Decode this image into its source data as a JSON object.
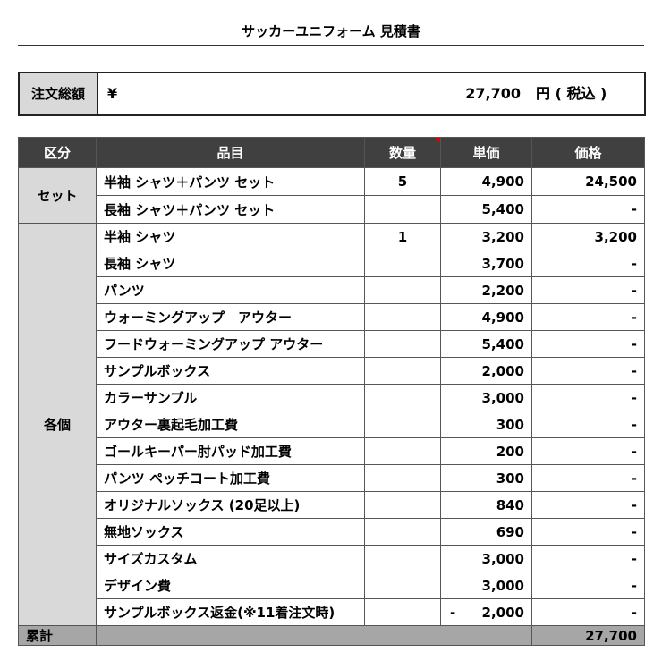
{
  "title": "サッカーユニフォーム 見積書",
  "order_total": {
    "label": "注文総額",
    "currency": "¥",
    "amount": "27,700",
    "suffix": "円 ( 税込 )"
  },
  "table": {
    "headers": [
      "区分",
      "品目",
      "数量",
      "単価",
      "価格"
    ],
    "groups": [
      {
        "name": "セット",
        "rows": [
          {
            "item": "半袖 シャツ＋パンツ セット",
            "qty": "5",
            "price": "4,900",
            "amount": "24,500"
          },
          {
            "item": "長袖 シャツ＋パンツ セット",
            "price": "5,400",
            "amount": "-"
          }
        ]
      },
      {
        "name": "各個",
        "rows": [
          {
            "item": "半袖 シャツ",
            "qty": "1",
            "price": "3,200",
            "amount": "3,200"
          },
          {
            "item": "長袖 シャツ",
            "price": "3,700",
            "amount": "-"
          },
          {
            "item": "パンツ",
            "price": "2,200",
            "amount": "-"
          },
          {
            "item": "ウォーミングアップ　アウター",
            "price": "4,900",
            "amount": "-"
          },
          {
            "item": "フードウォーミングアップ アウター",
            "price": "5,400",
            "amount": "-"
          },
          {
            "item": "サンプルボックス",
            "price": "2,000",
            "amount": "-"
          },
          {
            "item": "カラーサンプル",
            "price": "3,000",
            "amount": "-"
          },
          {
            "item": "アウター裏起毛加工費",
            "price": "300",
            "amount": "-"
          },
          {
            "item": "ゴールキーパー肘パッド加工費",
            "price": "200",
            "amount": "-"
          },
          {
            "item": "パンツ ペッチコート加工費",
            "price": "300",
            "amount": "-"
          },
          {
            "item": "オリジナルソックス (20足以上)",
            "price": "840",
            "amount": "-"
          },
          {
            "item": "無地ソックス",
            "price": "690",
            "amount": "-"
          },
          {
            "item": "サイズカスタム",
            "price": "3,000",
            "amount": "-"
          },
          {
            "item": "デザイン費",
            "price": "3,000",
            "amount": "-"
          },
          {
            "item": "サンプルボックス返金(※11着注文時)",
            "price_sign": "-",
            "price": "2,000",
            "amount": "-"
          }
        ]
      }
    ],
    "footer": {
      "label": "累計",
      "amount": "27,700"
    }
  }
}
